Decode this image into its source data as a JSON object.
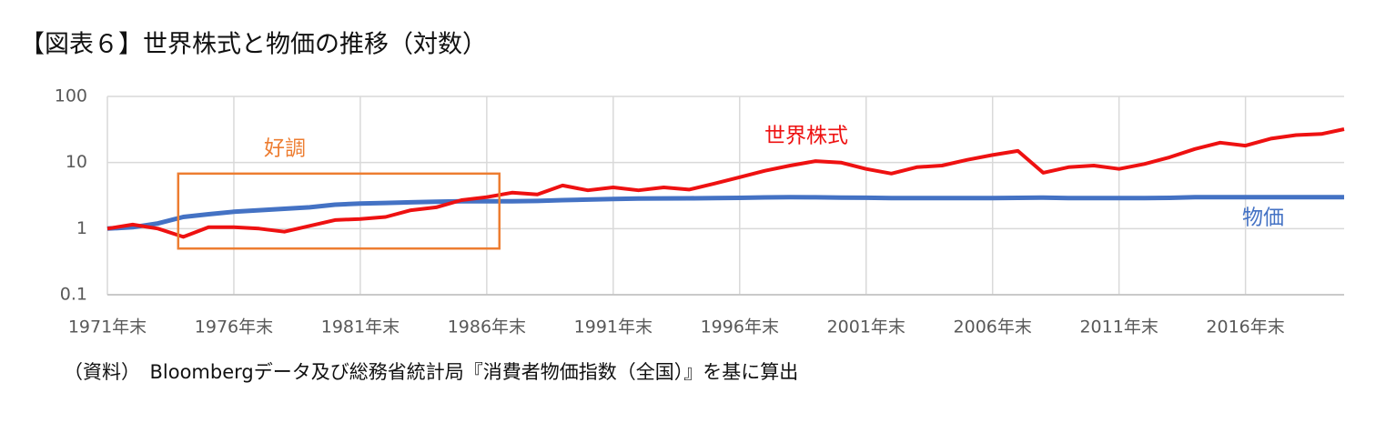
{
  "chart_data": {
    "type": "line",
    "title": "【図表６】世界株式と物価の推移（対数）",
    "source": "（資料）　Bloombergデータ及び総務省統計局『消費者物価指数（全国）』を基に算出",
    "x": [
      1971,
      1972,
      1973,
      1974,
      1975,
      1976,
      1977,
      1978,
      1979,
      1980,
      1981,
      1982,
      1983,
      1984,
      1985,
      1986,
      1987,
      1988,
      1989,
      1990,
      1991,
      1992,
      1993,
      1994,
      1995,
      1996,
      1997,
      1998,
      1999,
      2000,
      2001,
      2002,
      2003,
      2004,
      2005,
      2006,
      2007,
      2008,
      2009,
      2010,
      2011,
      2012,
      2013,
      2014,
      2015,
      2016,
      2017,
      2018,
      2019,
      2019.9
    ],
    "series": [
      {
        "name": "世界株式",
        "color": "#ee1111",
        "values": [
          1.0,
          1.15,
          1.0,
          0.75,
          1.05,
          1.05,
          1.0,
          0.9,
          1.1,
          1.35,
          1.4,
          1.5,
          1.9,
          2.1,
          2.7,
          3.0,
          3.5,
          3.3,
          4.5,
          3.8,
          4.2,
          3.8,
          4.2,
          3.9,
          4.8,
          6.0,
          7.5,
          9.0,
          10.5,
          10.0,
          8.0,
          6.8,
          8.5,
          9.0,
          11.0,
          13.0,
          15.0,
          7.0,
          8.5,
          9.0,
          8.0,
          9.5,
          12.0,
          16.0,
          20.0,
          18.0,
          23.0,
          26.0,
          27.0,
          32.0
        ]
      },
      {
        "name": "物価",
        "color": "#4472c4",
        "values": [
          1.0,
          1.05,
          1.2,
          1.5,
          1.65,
          1.8,
          1.9,
          2.0,
          2.1,
          2.3,
          2.4,
          2.45,
          2.5,
          2.55,
          2.6,
          2.6,
          2.6,
          2.62,
          2.7,
          2.75,
          2.8,
          2.85,
          2.87,
          2.88,
          2.9,
          2.92,
          2.97,
          3.0,
          2.98,
          2.95,
          2.93,
          2.9,
          2.9,
          2.9,
          2.9,
          2.9,
          2.92,
          2.95,
          2.9,
          2.9,
          2.9,
          2.9,
          2.92,
          3.0,
          3.0,
          3.0,
          3.0,
          3.0,
          3.0,
          3.0
        ]
      }
    ],
    "log_y": true,
    "ylim": [
      0.1,
      100
    ],
    "yticks": [
      0.1,
      1,
      10,
      100
    ],
    "xlim": [
      1971,
      2019.9
    ],
    "xticks": [
      {
        "value": 1971,
        "label": "1971年末"
      },
      {
        "value": 1976,
        "label": "1976年末"
      },
      {
        "value": 1981,
        "label": "1981年末"
      },
      {
        "value": 1986,
        "label": "1986年末"
      },
      {
        "value": 1991,
        "label": "1991年末"
      },
      {
        "value": 1996,
        "label": "1996年末"
      },
      {
        "value": 2001,
        "label": "2001年末"
      },
      {
        "value": 2006,
        "label": "2006年末"
      },
      {
        "value": 2011,
        "label": "2011年末"
      },
      {
        "value": 2016,
        "label": "2016年末"
      }
    ],
    "grid": true,
    "annotation": {
      "text": "好調",
      "color": "#ed7d31",
      "x0": 1973.8,
      "x1": 1986.5,
      "y0": 0.5,
      "y1": 6.8
    }
  }
}
